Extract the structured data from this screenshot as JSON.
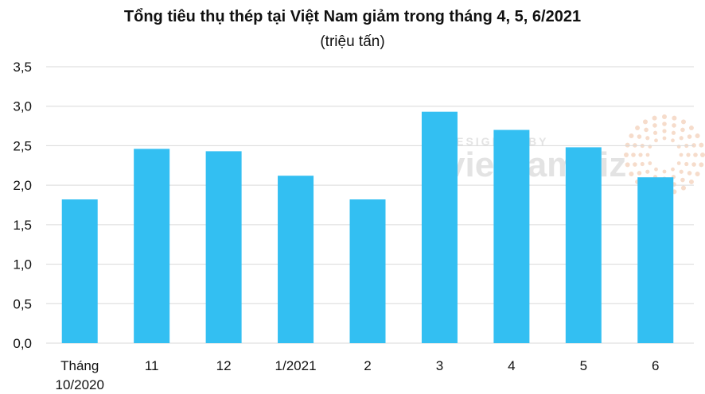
{
  "chart_data": {
    "type": "bar",
    "title": "Tổng tiêu thụ thép tại Việt Nam giảm trong tháng 4, 5, 6/2021",
    "subtitle": "(triệu tấn)",
    "categories": [
      [
        "Tháng",
        "10/2020"
      ],
      [
        "11"
      ],
      [
        "12"
      ],
      [
        "1/2021"
      ],
      [
        "2"
      ],
      [
        "3"
      ],
      [
        "4"
      ],
      [
        "5"
      ],
      [
        "6"
      ]
    ],
    "values": [
      1.82,
      2.46,
      2.43,
      2.12,
      1.82,
      2.93,
      2.7,
      2.48,
      2.1
    ],
    "ylim": [
      0,
      3.5
    ],
    "yticks": [
      "0,0",
      "0,5",
      "1,0",
      "1,5",
      "2,0",
      "2,5",
      "3,0",
      "3,5"
    ],
    "ytick_values": [
      0,
      0.5,
      1.0,
      1.5,
      2.0,
      2.5,
      3.0,
      3.5
    ],
    "grid": true,
    "bar_color": "#33bff2",
    "grid_color": "#d9d9d9"
  },
  "watermark": {
    "top": "DESIGNED BY",
    "main": "vietnambiz",
    "color": "#e3e3e3"
  }
}
